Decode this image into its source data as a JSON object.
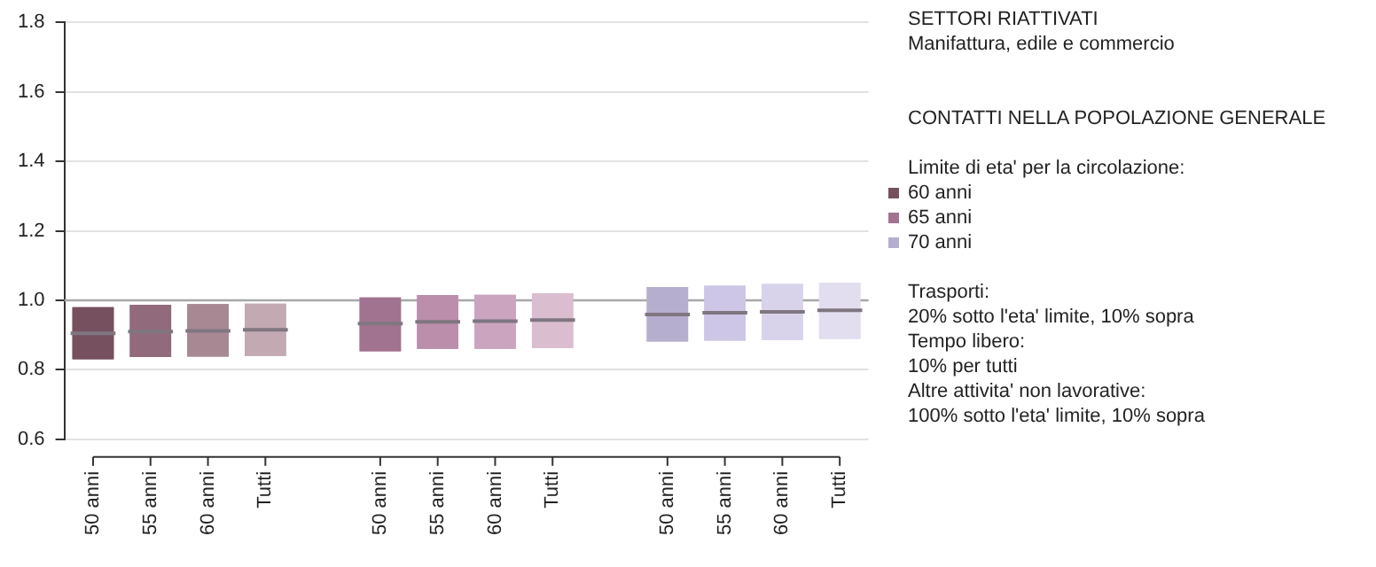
{
  "chart_data": {
    "type": "box",
    "title": "SETTORI RIATTIVATI",
    "subtitle": "Manifattura, edile e commercio",
    "annotations": [
      "CONTATTI NELLA POPOLAZIONE GENERALE",
      "Trasporti:",
      "20% sotto l'eta' limite, 10% sopra",
      "Tempo libero:",
      "10% per tutti",
      "Altre attivita' non lavorative:",
      "100% sotto l'eta' limite, 10% sopra"
    ],
    "legend_title": "Limite di eta' per la circolazione:",
    "legend": "right",
    "categories": [
      "50 anni",
      "55 anni",
      "60 anni",
      "Tutti",
      null,
      "50 anni",
      "55 anni",
      "60 anni",
      "Tutti",
      null,
      "50 anni",
      "55 anni",
      "60 anni",
      "Tutti"
    ],
    "series": [
      {
        "name": "60 anni",
        "color": "#76505f",
        "colors": [
          "#76505f",
          "#916b7b",
          "#a88892",
          "#c2a9b2",
          null,
          null,
          null,
          null,
          null,
          null,
          null,
          null,
          null,
          null
        ],
        "boxes": [
          {
            "low": 0.83,
            "q1": 0.83,
            "median": 0.905,
            "q3": 0.98,
            "high": 0.98
          },
          {
            "low": 0.837,
            "q1": 0.837,
            "median": 0.91,
            "q3": 0.987,
            "high": 0.987
          },
          {
            "low": 0.838,
            "q1": 0.838,
            "median": 0.912,
            "q3": 0.989,
            "high": 0.989
          },
          {
            "low": 0.84,
            "q1": 0.84,
            "median": 0.915,
            "q3": 0.99,
            "high": 0.99
          },
          null,
          null,
          null,
          null,
          null,
          null,
          null,
          null,
          null,
          null
        ]
      },
      {
        "name": "65 anni",
        "color": "#a27390",
        "colors": [
          null,
          null,
          null,
          null,
          null,
          "#a27390",
          "#bb8eac",
          "#cba5c0",
          "#dbbdd0",
          null,
          null,
          null,
          null,
          null
        ],
        "boxes": [
          null,
          null,
          null,
          null,
          null,
          {
            "low": 0.853,
            "q1": 0.853,
            "median": 0.933,
            "q3": 1.008,
            "high": 1.008
          },
          {
            "low": 0.86,
            "q1": 0.86,
            "median": 0.938,
            "q3": 1.015,
            "high": 1.015
          },
          {
            "low": 0.86,
            "q1": 0.86,
            "median": 0.94,
            "q3": 1.016,
            "high": 1.016
          },
          {
            "low": 0.863,
            "q1": 0.863,
            "median": 0.943,
            "q3": 1.02,
            "high": 1.02
          },
          null,
          null,
          null,
          null,
          null
        ]
      },
      {
        "name": "70 anni",
        "color": "#b5aecf",
        "colors": [
          null,
          null,
          null,
          null,
          null,
          null,
          null,
          null,
          null,
          null,
          "#b5aecf",
          "#cdc6e6",
          "#d8d3ea",
          "#e2def0"
        ],
        "boxes": [
          null,
          null,
          null,
          null,
          null,
          null,
          null,
          null,
          null,
          null,
          {
            "low": 0.881,
            "q1": 0.881,
            "median": 0.959,
            "q3": 1.038,
            "high": 1.038
          },
          {
            "low": 0.884,
            "q1": 0.884,
            "median": 0.964,
            "q3": 1.042,
            "high": 1.042
          },
          {
            "low": 0.886,
            "q1": 0.886,
            "median": 0.967,
            "q3": 1.047,
            "high": 1.047
          },
          {
            "low": 0.889,
            "q1": 0.889,
            "median": 0.971,
            "q3": 1.051,
            "high": 1.051
          }
        ]
      }
    ],
    "ylim": [
      0.6,
      1.8
    ],
    "yticks": [
      {
        "value": 0.6,
        "label": "0.6"
      },
      {
        "value": 0.8,
        "label": "0.8"
      },
      {
        "value": 1,
        "label": "1.0"
      },
      {
        "value": 1.2,
        "label": "1.2"
      },
      {
        "value": 1.4,
        "label": "1.4"
      },
      {
        "value": 1.6,
        "label": "1.6"
      },
      {
        "value": 1.8,
        "label": "1.8"
      }
    ],
    "ref_lines": [
      {
        "axis": "y",
        "value": 1,
        "color": "#a8a8a8"
      }
    ],
    "grid": "y"
  }
}
